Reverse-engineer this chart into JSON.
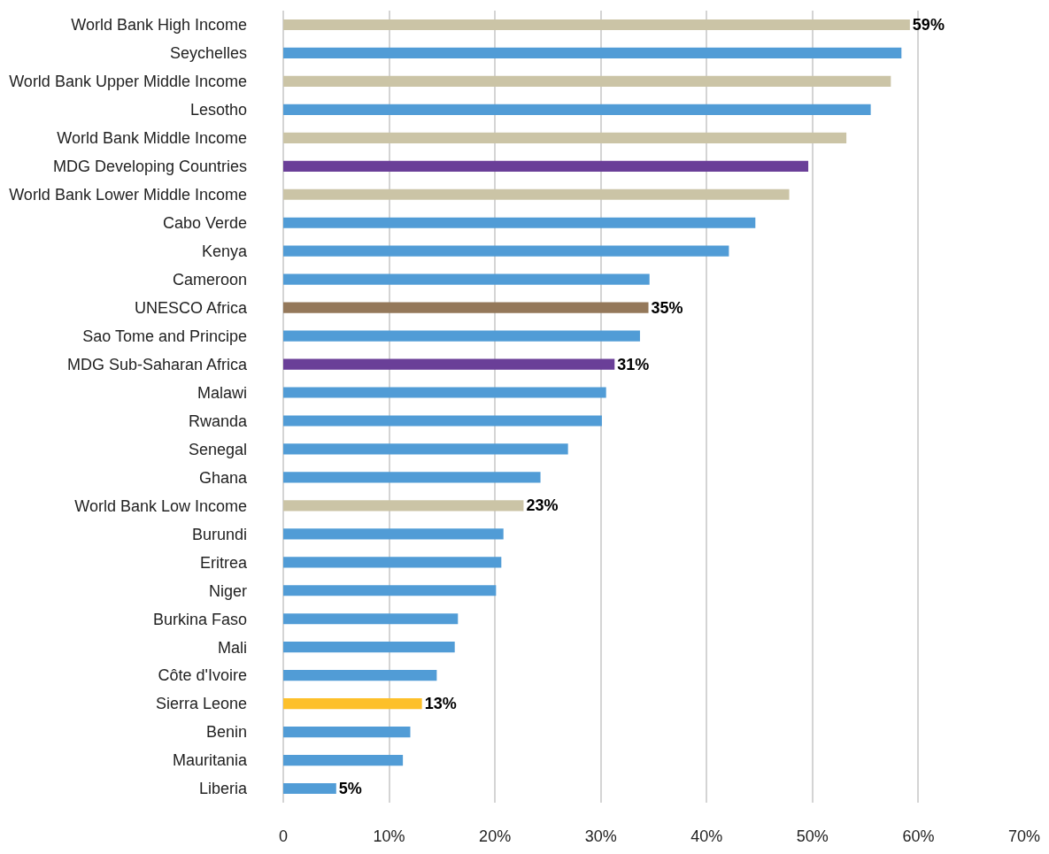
{
  "chart_data": {
    "type": "bar",
    "orientation": "horizontal",
    "categories": [
      "World Bank High Income",
      "Seychelles",
      "World Bank Upper Middle Income",
      "Lesotho",
      "World Bank Middle Income",
      "MDG Developing Countries",
      "World Bank Lower Middle Income",
      "Cabo Verde",
      "Kenya",
      "Cameroon",
      "UNESCO Africa",
      "Sao Tome and Principe",
      "MDG Sub-Saharan Africa",
      "Malawi",
      "Rwanda",
      "Senegal",
      "Ghana",
      "World Bank Low Income",
      "Burundi",
      "Eritrea",
      "Niger",
      "Burkina Faso",
      "Mali",
      "Côte d'Ivoire",
      "Sierra Leone",
      "Benin",
      "Mauritania",
      "Liberia"
    ],
    "values": [
      59.2,
      58.4,
      57.4,
      55.5,
      53.2,
      49.6,
      47.8,
      44.6,
      42.1,
      34.6,
      34.5,
      33.7,
      31.3,
      30.5,
      30.1,
      26.9,
      24.3,
      22.7,
      20.8,
      20.6,
      20.1,
      16.5,
      16.2,
      14.5,
      13.1,
      12.0,
      11.3,
      5.0
    ],
    "value_labels": [
      "59%",
      null,
      null,
      null,
      null,
      null,
      null,
      null,
      null,
      null,
      "35%",
      null,
      "31%",
      null,
      null,
      null,
      null,
      "23%",
      null,
      null,
      null,
      null,
      null,
      null,
      "13%",
      null,
      null,
      "5%"
    ],
    "colors": [
      "#cbc4a6",
      "#519cd6",
      "#cbc4a6",
      "#519cd6",
      "#cbc4a6",
      "#6a3f98",
      "#cbc4a6",
      "#519cd6",
      "#519cd6",
      "#519cd6",
      "#94785a",
      "#519cd6",
      "#6a3f98",
      "#519cd6",
      "#519cd6",
      "#519cd6",
      "#519cd6",
      "#cbc4a6",
      "#519cd6",
      "#519cd6",
      "#519cd6",
      "#519cd6",
      "#519cd6",
      "#519cd6",
      "#fdc02a",
      "#519cd6",
      "#519cd6",
      "#519cd6"
    ],
    "xlim": [
      0,
      70
    ],
    "xticks": [
      0,
      {
        "value": 10,
        "label": "10%"
      },
      {
        "value": 20,
        "label": "20%"
      },
      {
        "value": 30,
        "label": "30%"
      },
      {
        "value": 40,
        "label": "40%"
      },
      {
        "value": 50,
        "label": "50%"
      },
      {
        "value": 60,
        "label": "60%"
      },
      {
        "value": 70,
        "label": "70%"
      }
    ],
    "grid": "x"
  }
}
